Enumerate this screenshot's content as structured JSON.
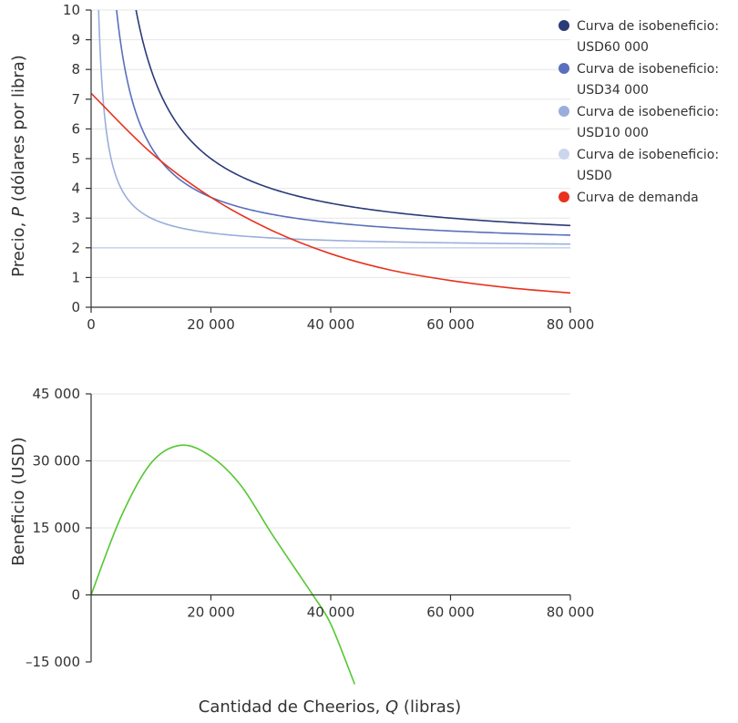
{
  "chart_data": [
    {
      "type": "line",
      "ylabel_parts": [
        "Precio, ",
        "P",
        " (dólares por libra)"
      ],
      "xlim": [
        0,
        80000
      ],
      "ylim": [
        0,
        10
      ],
      "x_ticks": [
        0,
        20000,
        40000,
        60000,
        80000
      ],
      "x_tick_labels": [
        "0",
        "20 000",
        "40 000",
        "60 000",
        "80 000"
      ],
      "y_ticks": [
        0,
        1,
        2,
        3,
        4,
        5,
        6,
        7,
        8,
        9,
        10
      ],
      "y_tick_labels": [
        "0",
        "1",
        "2",
        "3",
        "4",
        "5",
        "6",
        "7",
        "8",
        "9",
        "10"
      ],
      "legend_position": "top-right",
      "marginal_cost": 2,
      "series": [
        {
          "name": "Curva de isobeneficio:",
          "name_line2": "USD60 000",
          "kind": "isoprofit",
          "profit": 60000,
          "color": "#2b3a78"
        },
        {
          "name": "Curva de isobeneficio:",
          "name_line2": "USD34 000",
          "kind": "isoprofit",
          "profit": 34000,
          "color": "#5a6fbd"
        },
        {
          "name": "Curva de isobeneficio:",
          "name_line2": "USD10 000",
          "kind": "isoprofit",
          "profit": 10000,
          "color": "#9aaedc"
        },
        {
          "name": "Curva de isobeneficio:",
          "name_line2": "USD0",
          "kind": "isoprofit",
          "profit": 0,
          "color": "#cbd5ee"
        },
        {
          "name": "Curva de demanda",
          "name_line2": "",
          "kind": "demand",
          "color": "#e8321e",
          "points": [
            [
              0,
              7.2
            ],
            [
              10000,
              5.2
            ],
            [
              20000,
              3.7
            ],
            [
              30000,
              2.6
            ],
            [
              40000,
              1.8
            ],
            [
              50000,
              1.25
            ],
            [
              60000,
              0.9
            ],
            [
              70000,
              0.65
            ],
            [
              80000,
              0.48
            ]
          ]
        }
      ]
    },
    {
      "type": "line",
      "xlabel_parts": [
        "Cantidad de Cheerios, ",
        "Q",
        " (libras)"
      ],
      "ylabel": "Beneficio (USD)",
      "xlim": [
        0,
        80000
      ],
      "ylim": [
        -15000,
        45000
      ],
      "x_ticks": [
        20000,
        40000,
        60000,
        80000
      ],
      "x_tick_labels": [
        "20 000",
        "40 000",
        "60 000",
        "80 000"
      ],
      "y_ticks": [
        -15000,
        0,
        15000,
        30000,
        45000
      ],
      "y_tick_labels": [
        "–15 000",
        "0",
        "15 000",
        "30 000",
        "45 000"
      ],
      "series": [
        {
          "name": "",
          "color": "#55c832",
          "points": [
            [
              0,
              0
            ],
            [
              5000,
              17500
            ],
            [
              10000,
              29500
            ],
            [
              15000,
              33500
            ],
            [
              20000,
              31000
            ],
            [
              25000,
              24500
            ],
            [
              30000,
              14000
            ],
            [
              35000,
              4000
            ],
            [
              37000,
              0
            ],
            [
              40000,
              -6500
            ],
            [
              44000,
              -20000
            ]
          ]
        }
      ]
    }
  ]
}
